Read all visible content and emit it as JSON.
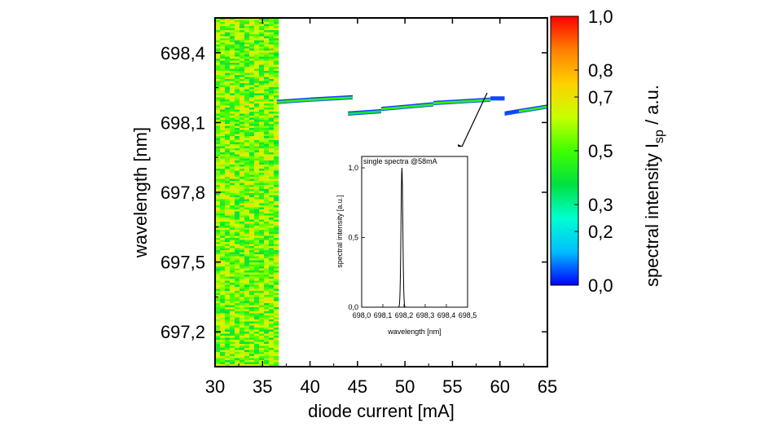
{
  "chart_data": {
    "type": "heatmap",
    "main": {
      "xlabel": "diode current [mA]",
      "ylabel": "wavelength [nm]",
      "xlim": [
        30,
        65
      ],
      "ylim": [
        697.05,
        698.55
      ],
      "x_ticks": [
        30,
        35,
        40,
        45,
        50,
        55,
        60,
        65
      ],
      "x_tick_labels": [
        "30",
        "35",
        "40",
        "45",
        "50",
        "55",
        "60",
        "65"
      ],
      "y_ticks": [
        697.2,
        697.5,
        697.8,
        698.1,
        698.4
      ],
      "y_tick_labels": [
        "697,2",
        "697,5",
        "697,8",
        "698,1",
        "698,4"
      ],
      "noise_region": {
        "x_range": [
          30,
          36.5
        ],
        "description_level": "broadband noise 0.4-0.7"
      },
      "modes": [
        {
          "x0": 36.5,
          "x1": 40.0,
          "y0": 698.19,
          "y1": 698.2,
          "intensity": 0.45
        },
        {
          "x0": 40.0,
          "x1": 44.5,
          "y0": 698.2,
          "y1": 698.21,
          "intensity": 0.45
        },
        {
          "x0": 44.0,
          "x1": 47.5,
          "y0": 698.14,
          "y1": 698.15,
          "intensity": 0.4
        },
        {
          "x0": 47.5,
          "x1": 53.0,
          "y0": 698.16,
          "y1": 698.18,
          "intensity": 0.45
        },
        {
          "x0": 53.0,
          "x1": 59.0,
          "y0": 698.185,
          "y1": 698.2,
          "intensity": 0.45
        },
        {
          "x0": 59.0,
          "x1": 60.5,
          "y0": 698.205,
          "y1": 698.205,
          "intensity": 0.05
        },
        {
          "x0": 60.5,
          "x1": 62.0,
          "y0": 698.14,
          "y1": 698.15,
          "intensity": 0.05
        },
        {
          "x0": 62.0,
          "x1": 65.0,
          "y0": 698.15,
          "y1": 698.17,
          "intensity": 0.45
        }
      ]
    },
    "colorbar": {
      "label_main": "spectral intensity I",
      "label_sub": "sp",
      "label_unit": " / a.u.",
      "ticks": [
        0.0,
        0.2,
        0.3,
        0.5,
        0.7,
        0.8,
        1.0
      ],
      "tick_labels": [
        "0,0",
        "0,2",
        "0,3",
        "0,5",
        "0,7",
        "0,8",
        "1,0"
      ],
      "colors": [
        "#0000ff",
        "#00bfff",
        "#00ffd0",
        "#00e040",
        "#40ff00",
        "#c8ff00",
        "#ffd000",
        "#ff8000",
        "#ff0000"
      ]
    },
    "inset": {
      "title": "single spectra @58mA",
      "xlabel": "wavelength [nm]",
      "ylabel": "spectral intensity [a.u.]",
      "xlim": [
        698.0,
        698.5
      ],
      "ylim": [
        0.0,
        1.0
      ],
      "x_ticks": [
        698.0,
        698.1,
        698.2,
        698.3,
        698.4,
        698.5
      ],
      "x_tick_labels": [
        "698,0",
        "698,1",
        "698,2",
        "698,3",
        "698,4",
        "698,5"
      ],
      "y_ticks": [
        0.0,
        0.5,
        1.0
      ],
      "y_tick_labels": [
        "0,0",
        "0,5",
        "1,0"
      ],
      "peak": {
        "x": 698.19,
        "y": 1.0,
        "width": 0.006
      }
    },
    "annotation_arrow": {
      "from": {
        "x": 59.5,
        "y": 698.17
      },
      "to": "inset"
    }
  }
}
